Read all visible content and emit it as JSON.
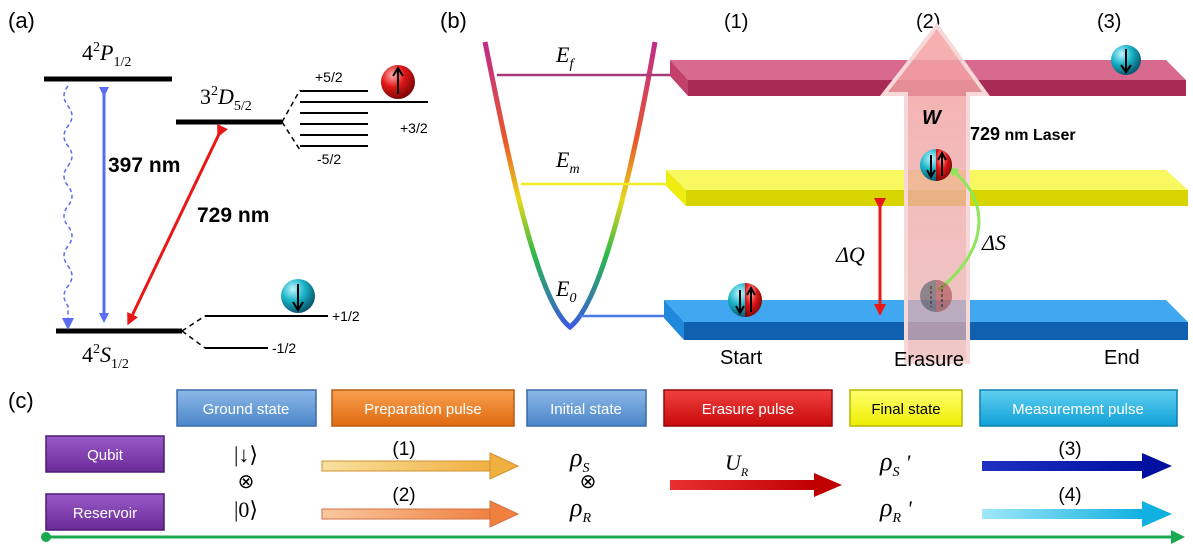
{
  "panel_labels": {
    "a": "(a)",
    "b": "(b)",
    "c": "(c)"
  },
  "panel_a": {
    "level_p_main": "4",
    "level_p_sup": "2",
    "level_p_letter": "P",
    "level_p_sub": "1/2",
    "level_d_main": "3",
    "level_d_sup": "2",
    "level_d_letter": "D",
    "level_d_sub": "5/2",
    "level_s_main": "4",
    "level_s_sup": "2",
    "level_s_letter": "S",
    "level_s_sub": "1/2",
    "laser_397": "397 nm",
    "laser_729": "729 nm",
    "d_sublevel_top": "+5/2",
    "d_sublevel_mid": "+3/2",
    "d_sublevel_bottom": "-5/2",
    "s_sublevel_top": "+1/2",
    "s_sublevel_bottom": "-1/2",
    "colors": {
      "blue_arrow": "#5b6cf0",
      "red_arrow": "#e81818",
      "red_ball": "#e01515",
      "cyan_ball": "#19b4c8"
    }
  },
  "panel_b": {
    "stage_1": "(1)",
    "stage_2": "(2)",
    "stage_3": "(3)",
    "energy_f": "E",
    "energy_f_sub": "f",
    "energy_m": "E",
    "energy_m_sub": "m",
    "energy_0": "E",
    "energy_0_sub": "0",
    "work_label": "W",
    "laser_label_num": "729",
    "laser_label_text": " nm Laser",
    "delta_q": "ΔQ",
    "delta_s": "ΔS",
    "start_label": "Start",
    "erasure_label": "Erasure",
    "end_label": "End",
    "colors": {
      "top_slab": "#c2406a",
      "mid_slab": "#f4f20a",
      "bottom_slab": "#1f88dc"
    }
  },
  "panel_c": {
    "box_ground": "Ground state",
    "box_prep": "Preparation pulse",
    "box_initial": "Initial state",
    "box_erasure": "Erasure pulse",
    "box_final": "Final state",
    "box_measure": "Measurement pulse",
    "qubit": "Qubit",
    "reservoir": "Reservoir",
    "ket_down": "|↓⟩",
    "otimes": "⊗",
    "ket_zero": "|0⟩",
    "arrow1_label": "(1)",
    "arrow2_label": "(2)",
    "arrow3_label": "(3)",
    "arrow4_label": "(4)",
    "rho_s": "ρ",
    "rho_s_sub": "S",
    "rho_r": "ρ",
    "rho_r_sub": "R",
    "u_r": "U",
    "u_r_sub": "R",
    "rho_s_final": "ρ",
    "rho_s_final_sub": "S",
    "rho_r_final": "ρ",
    "rho_r_final_sub": "R",
    "prime": "'",
    "colors": {
      "blue_box": "#5b97d6",
      "orange_box": "#f07e26",
      "red_box": "#e31818",
      "yellow_box": "#ffff00",
      "cyan_box": "#1cb8e6",
      "purple_box": "#7d3fa8",
      "green_timeline": "#1aa850"
    }
  }
}
